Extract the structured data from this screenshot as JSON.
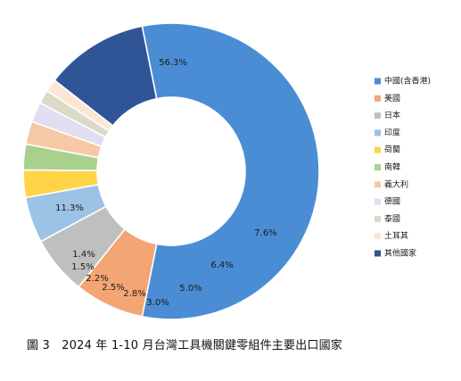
{
  "chart_data": {
    "type": "pie",
    "donut": true,
    "legend_position": "right",
    "series": [
      {
        "name": "中國(含香港)",
        "value": 56.3,
        "label": "56.3%",
        "color": "#4A8DD4"
      },
      {
        "name": "美國",
        "value": 7.6,
        "label": "7.6%",
        "color": "#F4A574"
      },
      {
        "name": "日本",
        "value": 6.4,
        "label": "6.4%",
        "color": "#BFBFBF"
      },
      {
        "name": "印度",
        "value": 5.0,
        "label": "5.0%",
        "color": "#9CC3E6"
      },
      {
        "name": "荷蘭",
        "value": 3.0,
        "label": "3.0%",
        "color": "#FFD447"
      },
      {
        "name": "南韓",
        "value": 2.8,
        "label": "2.8%",
        "color": "#A9D18E"
      },
      {
        "name": "義大利",
        "value": 2.5,
        "label": "2.5%",
        "color": "#F7C8A6"
      },
      {
        "name": "德國",
        "value": 2.2,
        "label": "2.2%",
        "color": "#E2DDF0"
      },
      {
        "name": "泰國",
        "value": 1.5,
        "label": "1.5%",
        "color": "#DADBC6"
      },
      {
        "name": "土耳其",
        "value": 1.4,
        "label": "1.4%",
        "color": "#FBE6D4"
      },
      {
        "name": "其他國家",
        "value": 11.3,
        "label": "11.3%",
        "color": "#2F5597"
      }
    ]
  },
  "caption": "圖 3　2024 年 1-10 月台灣工具機關鍵零組件主要出口國家"
}
